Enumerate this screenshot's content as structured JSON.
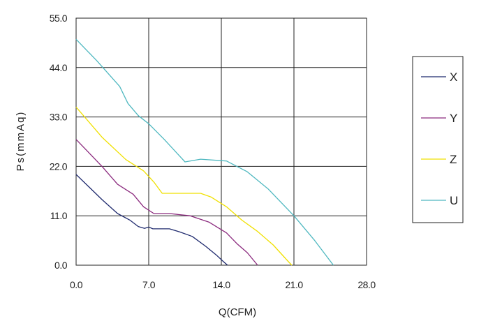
{
  "chart_data": {
    "type": "line",
    "xlabel": "Q(CFM)",
    "ylabel": "Ps(mmAq)",
    "xlim": [
      0,
      28
    ],
    "ylim": [
      0,
      55
    ],
    "x_ticks": [
      "0.0",
      "7.0",
      "14.0",
      "21.0",
      "28.0"
    ],
    "y_ticks": [
      "0.0",
      "11.0",
      "22.0",
      "33.0",
      "44.0",
      "55.0"
    ],
    "grid": true,
    "legend_position": "right",
    "series": [
      {
        "name": "X",
        "color": "#1f2a6e",
        "points": [
          [
            0,
            20.2
          ],
          [
            2.5,
            14.6
          ],
          [
            4.0,
            11.5
          ],
          [
            5.2,
            10.0
          ],
          [
            6.0,
            8.6
          ],
          [
            6.6,
            8.2
          ],
          [
            7.0,
            8.5
          ],
          [
            7.4,
            8.1
          ],
          [
            9.0,
            8.1
          ],
          [
            10.0,
            7.4
          ],
          [
            11.2,
            6.4
          ],
          [
            12.5,
            4.2
          ],
          [
            13.5,
            2.3
          ],
          [
            14.2,
            0.8
          ],
          [
            14.6,
            0
          ]
        ]
      },
      {
        "name": "Y",
        "color": "#8b2a7e",
        "points": [
          [
            0,
            28.0
          ],
          [
            2.5,
            22.0
          ],
          [
            4.0,
            18.0
          ],
          [
            5.5,
            15.8
          ],
          [
            6.5,
            13.0
          ],
          [
            7.5,
            11.5
          ],
          [
            9.0,
            11.5
          ],
          [
            11.0,
            11.0
          ],
          [
            12.8,
            9.6
          ],
          [
            14.5,
            7.2
          ],
          [
            15.5,
            4.8
          ],
          [
            16.5,
            2.8
          ],
          [
            17.5,
            0
          ]
        ]
      },
      {
        "name": "Z",
        "color": "#f0e000",
        "points": [
          [
            0,
            35.2
          ],
          [
            2.5,
            28.5
          ],
          [
            4.8,
            23.5
          ],
          [
            6.5,
            21.0
          ],
          [
            7.5,
            18.5
          ],
          [
            8.3,
            16.0
          ],
          [
            10.5,
            16.0
          ],
          [
            12.0,
            16.0
          ],
          [
            13.0,
            15.2
          ],
          [
            14.5,
            13.0
          ],
          [
            16.0,
            10.0
          ],
          [
            17.5,
            7.5
          ],
          [
            19.0,
            4.5
          ],
          [
            20.5,
            0.7
          ],
          [
            20.8,
            0
          ]
        ]
      },
      {
        "name": "U",
        "color": "#4fb8c0",
        "points": [
          [
            0,
            50.3
          ],
          [
            2.0,
            45.5
          ],
          [
            4.2,
            39.8
          ],
          [
            5.0,
            36.0
          ],
          [
            6.0,
            33.3
          ],
          [
            7.0,
            31.5
          ],
          [
            8.5,
            28.0
          ],
          [
            10.5,
            23.0
          ],
          [
            12.0,
            23.6
          ],
          [
            14.5,
            23.2
          ],
          [
            16.5,
            20.8
          ],
          [
            18.5,
            17.0
          ],
          [
            21.0,
            11.0
          ],
          [
            23.0,
            5.5
          ],
          [
            24.8,
            0
          ]
        ]
      }
    ]
  }
}
